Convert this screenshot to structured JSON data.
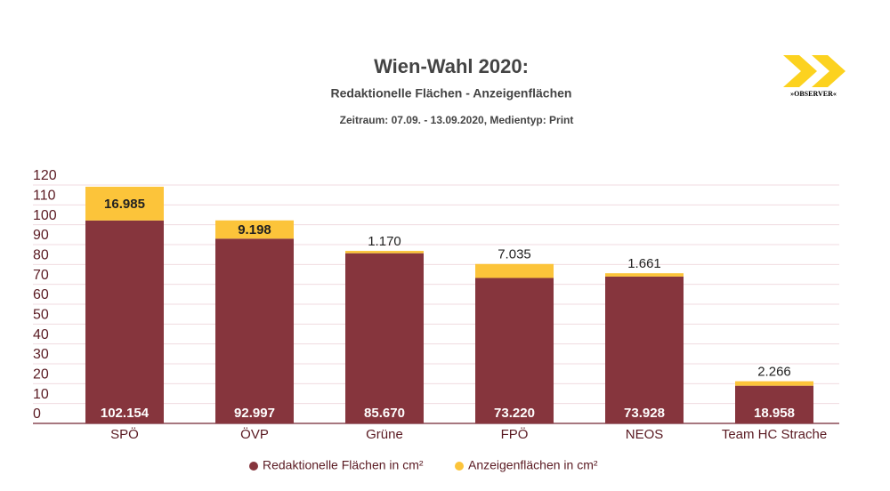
{
  "chart_data": {
    "type": "stacked_bar",
    "title": "Wien-Wahl 2020:",
    "subtitle": "Redaktionelle Flächen - Anzeigenflächen",
    "note": "Zeitraum: 07.09. - 13.09.2020, Medientyp: Print",
    "logo_text": "»OBSERVER«",
    "categories": [
      "SPÖ",
      "ÖVP",
      "Grüne",
      "FPÖ",
      "NEOS",
      "Team HC Strache"
    ],
    "series": [
      {
        "name": "Redaktionelle Flächen in cm²",
        "color": "#86353d",
        "values": [
          102.154,
          92.997,
          85.67,
          73.22,
          73.928,
          18.958
        ],
        "value_labels": [
          "102.154",
          "92.997",
          "85.670",
          "73.220",
          "73.928",
          "18.958"
        ]
      },
      {
        "name": "Anzeigenflächen in cm²",
        "color": "#fcc43a",
        "values": [
          16.985,
          9.198,
          1.17,
          7.035,
          1.661,
          2.266
        ],
        "value_labels": [
          "16.985",
          "9.198",
          "1.170",
          "7.035",
          "1.661",
          "2.266"
        ]
      }
    ],
    "ylim": [
      0,
      120
    ],
    "yticks": [
      0,
      10,
      20,
      30,
      40,
      50,
      60,
      70,
      80,
      90,
      100,
      110,
      120
    ],
    "grid": true
  }
}
